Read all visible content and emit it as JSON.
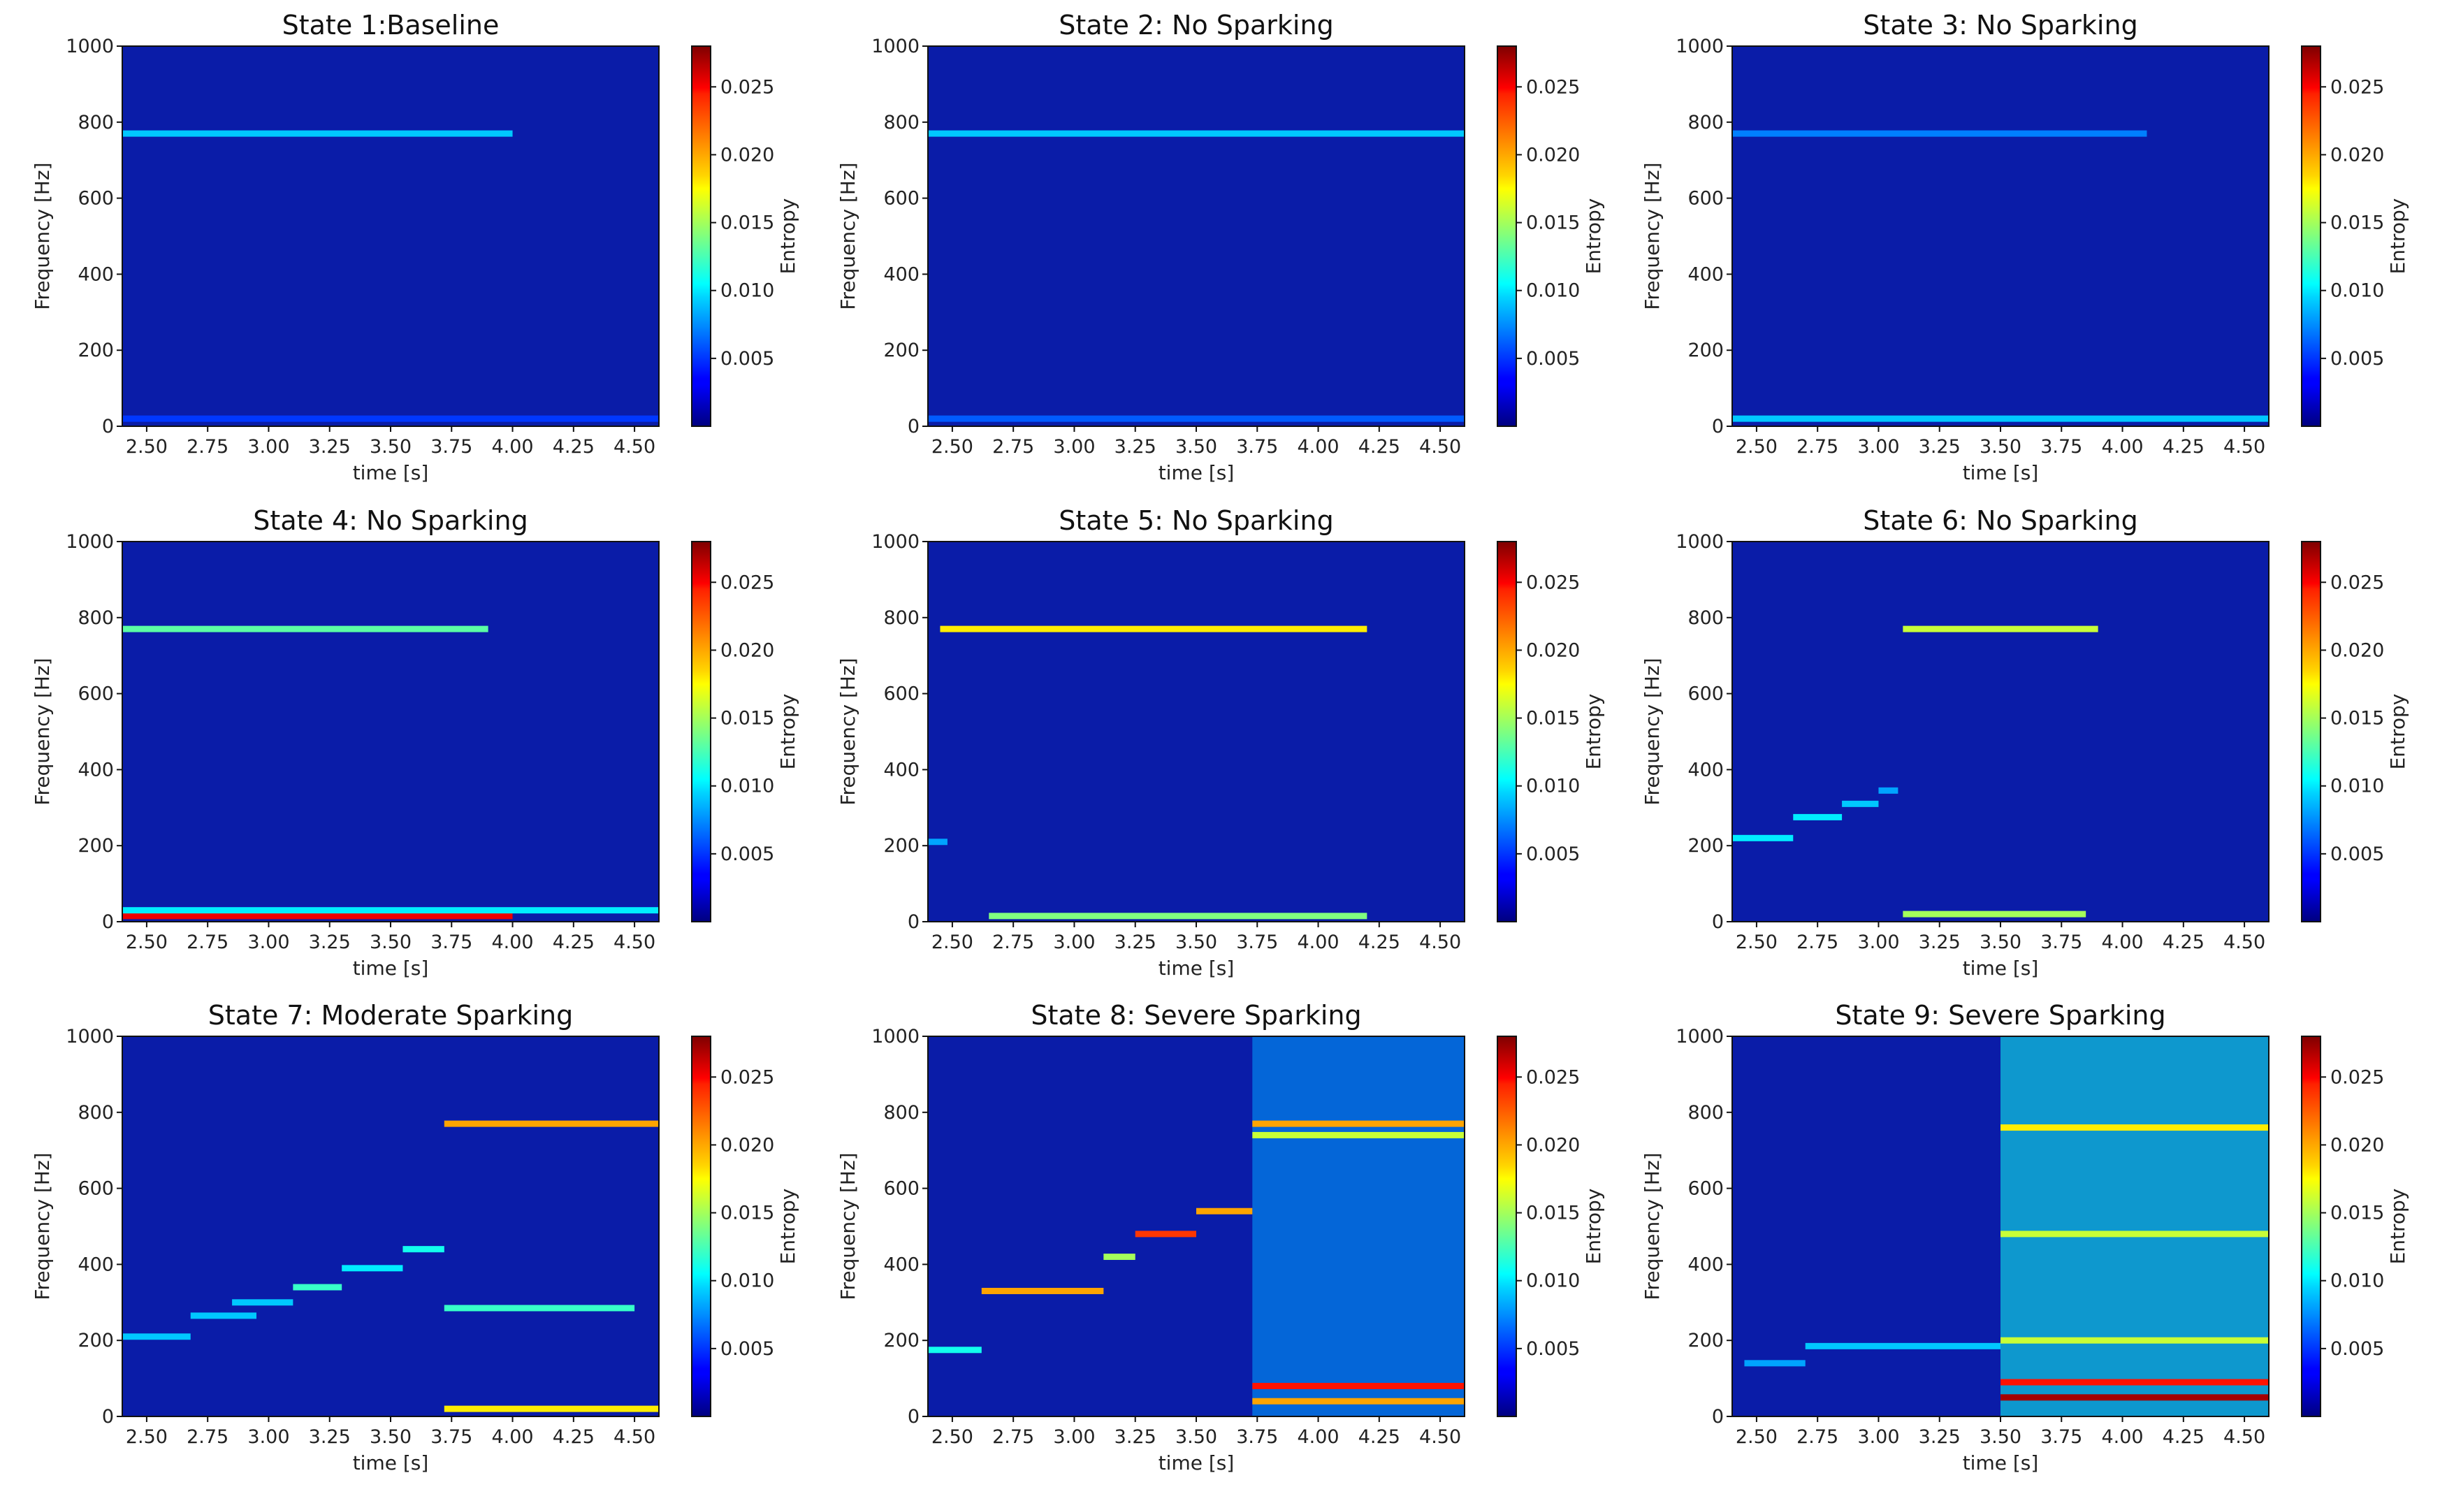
{
  "chart_data": {
    "type": "heatmap",
    "colormap": "jet",
    "shared": {
      "xlabel": "time [s]",
      "ylabel": "Frequency [Hz]",
      "colorbar_label": "Entropy",
      "xlim": [
        2.4,
        4.6
      ],
      "ylim": [
        0,
        1000
      ],
      "x_ticks": [
        "2.50",
        "2.75",
        "3.00",
        "3.25",
        "3.50",
        "3.75",
        "4.00",
        "4.25",
        "4.50"
      ],
      "y_ticks": [
        "0",
        "200",
        "400",
        "600",
        "800",
        "1000"
      ],
      "colorbar_range": [
        0,
        0.028
      ],
      "colorbar_ticks": [
        "0.005",
        "0.010",
        "0.015",
        "0.020",
        "0.025"
      ]
    },
    "panels": [
      {
        "title": "State 1:Baseline",
        "features": [
          {
            "kind": "band",
            "freq": 770,
            "t0": 2.4,
            "t1": 4.0,
            "entropy": 0.009
          },
          {
            "kind": "band",
            "freq": 20,
            "t0": 2.4,
            "t1": 4.6,
            "entropy": 0.005
          }
        ]
      },
      {
        "title": "State 2: No Sparking",
        "features": [
          {
            "kind": "band",
            "freq": 770,
            "t0": 2.4,
            "t1": 4.6,
            "entropy": 0.009
          },
          {
            "kind": "band",
            "freq": 20,
            "t0": 2.4,
            "t1": 4.6,
            "entropy": 0.006
          }
        ]
      },
      {
        "title": "State 3: No Sparking",
        "features": [
          {
            "kind": "band",
            "freq": 770,
            "t0": 2.4,
            "t1": 4.1,
            "entropy": 0.007
          },
          {
            "kind": "band",
            "freq": 20,
            "t0": 2.4,
            "t1": 4.6,
            "entropy": 0.009
          }
        ]
      },
      {
        "title": "State 4: No Sparking",
        "features": [
          {
            "kind": "band",
            "freq": 770,
            "t0": 2.4,
            "t1": 3.9,
            "entropy": 0.013
          },
          {
            "kind": "band",
            "freq": 15,
            "t0": 2.4,
            "t1": 4.0,
            "entropy": 0.025
          },
          {
            "kind": "band",
            "freq": 30,
            "t0": 2.4,
            "t1": 4.6,
            "entropy": 0.01
          }
        ]
      },
      {
        "title": "State 5: No Sparking",
        "features": [
          {
            "kind": "band",
            "freq": 770,
            "t0": 2.45,
            "t1": 4.2,
            "entropy": 0.018
          },
          {
            "kind": "band",
            "freq": 15,
            "t0": 2.65,
            "t1": 4.2,
            "entropy": 0.014
          },
          {
            "kind": "band",
            "freq": 210,
            "t0": 2.4,
            "t1": 2.48,
            "entropy": 0.008
          }
        ]
      },
      {
        "title": "State 6: No Sparking",
        "features": [
          {
            "kind": "band",
            "freq": 770,
            "t0": 3.1,
            "t1": 3.9,
            "entropy": 0.016
          },
          {
            "kind": "band",
            "freq": 20,
            "t0": 3.1,
            "t1": 3.85,
            "entropy": 0.015
          },
          {
            "kind": "band",
            "freq": 220,
            "t0": 2.4,
            "t1": 2.65,
            "entropy": 0.01
          },
          {
            "kind": "band",
            "freq": 275,
            "t0": 2.65,
            "t1": 2.85,
            "entropy": 0.01
          },
          {
            "kind": "band",
            "freq": 310,
            "t0": 2.85,
            "t1": 3.0,
            "entropy": 0.009
          },
          {
            "kind": "band",
            "freq": 345,
            "t0": 3.0,
            "t1": 3.08,
            "entropy": 0.008
          }
        ]
      },
      {
        "title": "State 7: Moderate Sparking",
        "features": [
          {
            "kind": "band",
            "freq": 210,
            "t0": 2.4,
            "t1": 2.68,
            "entropy": 0.009
          },
          {
            "kind": "band",
            "freq": 265,
            "t0": 2.68,
            "t1": 2.95,
            "entropy": 0.009
          },
          {
            "kind": "band",
            "freq": 300,
            "t0": 2.85,
            "t1": 3.1,
            "entropy": 0.009
          },
          {
            "kind": "band",
            "freq": 340,
            "t0": 3.1,
            "t1": 3.3,
            "entropy": 0.012
          },
          {
            "kind": "band",
            "freq": 390,
            "t0": 3.3,
            "t1": 3.55,
            "entropy": 0.01
          },
          {
            "kind": "band",
            "freq": 440,
            "t0": 3.55,
            "t1": 3.72,
            "entropy": 0.011
          },
          {
            "kind": "band",
            "freq": 770,
            "t0": 3.72,
            "t1": 4.6,
            "entropy": 0.02
          },
          {
            "kind": "band",
            "freq": 285,
            "t0": 3.72,
            "t1": 4.5,
            "entropy": 0.012
          },
          {
            "kind": "band",
            "freq": 20,
            "t0": 3.72,
            "t1": 4.6,
            "entropy": 0.018
          }
        ]
      },
      {
        "title": "State 8: Severe Sparking",
        "features": [
          {
            "kind": "band",
            "freq": 175,
            "t0": 2.4,
            "t1": 2.62,
            "entropy": 0.011
          },
          {
            "kind": "band",
            "freq": 330,
            "t0": 2.62,
            "t1": 3.12,
            "entropy": 0.02
          },
          {
            "kind": "band",
            "freq": 420,
            "t0": 3.12,
            "t1": 3.25,
            "entropy": 0.015
          },
          {
            "kind": "band",
            "freq": 480,
            "t0": 3.25,
            "t1": 3.5,
            "entropy": 0.023
          },
          {
            "kind": "band",
            "freq": 540,
            "t0": 3.5,
            "t1": 3.73,
            "entropy": 0.02
          },
          {
            "kind": "band",
            "freq": 770,
            "t0": 3.73,
            "t1": 4.6,
            "entropy": 0.02
          },
          {
            "kind": "band",
            "freq": 740,
            "t0": 3.73,
            "t1": 4.6,
            "entropy": 0.016
          },
          {
            "kind": "band",
            "freq": 80,
            "t0": 3.73,
            "t1": 4.6,
            "entropy": 0.024
          },
          {
            "kind": "band",
            "freq": 40,
            "t0": 3.73,
            "t1": 4.6,
            "entropy": 0.02
          },
          {
            "kind": "region",
            "t0": 3.73,
            "t1": 4.6,
            "entropy": 0.008
          }
        ]
      },
      {
        "title": "State 9: Severe Sparking",
        "features": [
          {
            "kind": "band",
            "freq": 140,
            "t0": 2.45,
            "t1": 2.7,
            "entropy": 0.008
          },
          {
            "kind": "band",
            "freq": 185,
            "t0": 2.7,
            "t1": 3.5,
            "entropy": 0.009
          },
          {
            "kind": "band",
            "freq": 760,
            "t0": 3.5,
            "t1": 4.6,
            "entropy": 0.018
          },
          {
            "kind": "band",
            "freq": 50,
            "t0": 3.5,
            "t1": 4.6,
            "entropy": 0.027
          },
          {
            "kind": "band",
            "freq": 90,
            "t0": 3.5,
            "t1": 4.6,
            "entropy": 0.024
          },
          {
            "kind": "band",
            "freq": 480,
            "t0": 3.5,
            "t1": 4.6,
            "entropy": 0.016
          },
          {
            "kind": "band",
            "freq": 200,
            "t0": 3.5,
            "t1": 4.6,
            "entropy": 0.016
          },
          {
            "kind": "region",
            "t0": 3.5,
            "t1": 4.6,
            "entropy": 0.011
          }
        ]
      }
    ]
  }
}
